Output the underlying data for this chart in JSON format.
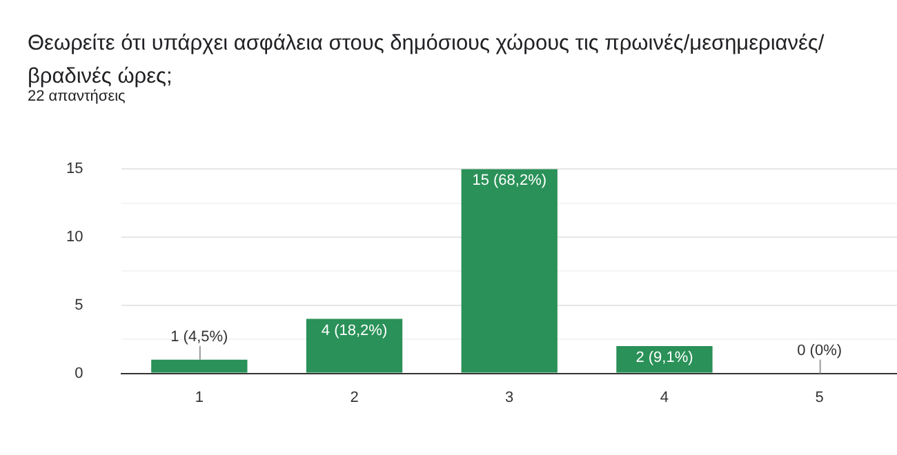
{
  "chart_data": {
    "type": "bar",
    "title": "Θεωρείτε ότι υπάρχει ασφάλεια στους δημόσιους χώρους τις πρωινές/μεσημεριανές/βραδινές ώρες;",
    "subtitle": "22 απαντήσεις",
    "categories": [
      "1",
      "2",
      "3",
      "4",
      "5"
    ],
    "values": [
      1,
      4,
      15,
      2,
      0
    ],
    "value_labels": [
      "1 (4,5%)",
      "4 (18,2%)",
      "15 (68,2%)",
      "2 (9,1%)",
      "0 (0%)"
    ],
    "color": "#2a9158",
    "ylim": [
      0,
      15
    ],
    "yticks": [
      0,
      {
        "value": 2.5,
        "label": null
      },
      5,
      {
        "value": 7.5,
        "label": null
      },
      10,
      {
        "value": 12.5,
        "label": null
      },
      15
    ],
    "grid": true
  }
}
